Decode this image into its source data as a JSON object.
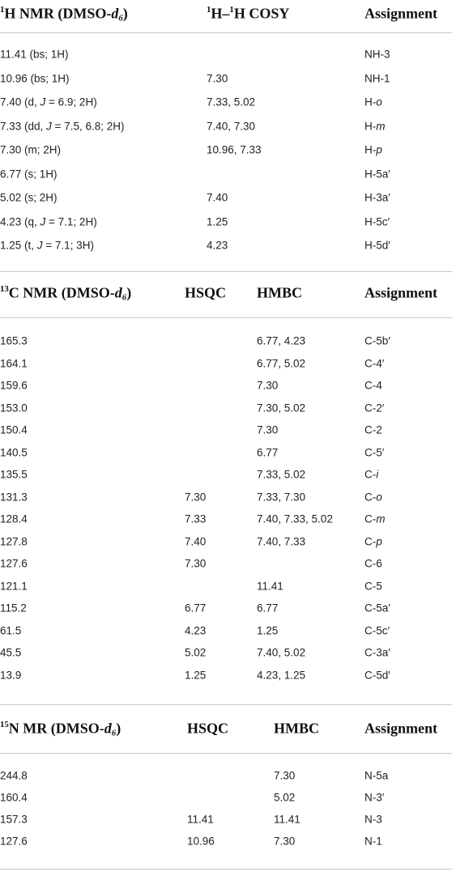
{
  "sections": [
    {
      "columns": [
        [
          {
            "sup": "1"
          },
          "H NMR (DMSO-",
          {
            "italic": "d"
          },
          {
            "sub": "6"
          },
          ")"
        ],
        [
          {
            "sup": "1"
          },
          "H–",
          {
            "sup": "1"
          },
          "H COSY"
        ],
        "Assignment"
      ],
      "rows": [
        [
          "11.41 (bs; 1H)",
          null,
          "NH-3"
        ],
        [
          "10.96 (bs; 1H)",
          "7.30",
          "NH-1"
        ],
        [
          [
            "7.40 (d, ",
            {
              "italic": "J"
            },
            " = 6.9; 2H)"
          ],
          "7.33, 5.02",
          [
            "H-",
            {
              "italic": "o"
            }
          ]
        ],
        [
          [
            "7.33 (dd, ",
            {
              "italic": "J"
            },
            " = 7.5, 6.8; 2H)"
          ],
          "7.40, 7.30",
          [
            "H-",
            {
              "italic": "m"
            }
          ]
        ],
        [
          "7.30 (m; 2H)",
          "10.96, 7.33",
          [
            "H-",
            {
              "italic": "p"
            }
          ]
        ],
        [
          "6.77 (s; 1H)",
          null,
          "H-5a′"
        ],
        [
          "5.02 (s; 2H)",
          "7.40",
          "H-3a′"
        ],
        [
          [
            "4.23 (q, ",
            {
              "italic": "J"
            },
            " = 7.1; 2H)"
          ],
          "1.25",
          "H-5c′"
        ],
        [
          [
            "1.25 (t, ",
            {
              "italic": "J"
            },
            " = 7.1; 3H)"
          ],
          "4.23",
          "H-5d′"
        ]
      ]
    },
    {
      "columns": [
        [
          {
            "sup": "13"
          },
          "C NMR (DMSO-",
          {
            "italic": "d"
          },
          {
            "sub": "6"
          },
          ")"
        ],
        "HSQC",
        "HMBC",
        "Assignment"
      ],
      "rows": [
        [
          "165.3",
          null,
          "6.77, 4.23",
          "C-5b′"
        ],
        [
          "164.1",
          null,
          "6.77, 5.02",
          "C-4′"
        ],
        [
          "159.6",
          null,
          "7.30",
          "C-4"
        ],
        [
          "153.0",
          null,
          "7.30, 5.02",
          "C-2′"
        ],
        [
          "150.4",
          null,
          "7.30",
          "C-2"
        ],
        [
          "140.5",
          null,
          "6.77",
          "C-5′"
        ],
        [
          "135.5",
          null,
          "7.33, 5.02",
          [
            "C-",
            {
              "italic": "i"
            }
          ]
        ],
        [
          "131.3",
          "7.30",
          "7.33, 7.30",
          [
            "C-",
            {
              "italic": "o"
            }
          ]
        ],
        [
          "128.4",
          "7.33",
          "7.40, 7.33, 5.02",
          [
            "C-",
            {
              "italic": "m"
            }
          ]
        ],
        [
          "127.8",
          "7.40",
          "7.40, 7.33",
          [
            "C-",
            {
              "italic": "p"
            }
          ]
        ],
        [
          "127.6",
          "7.30",
          null,
          "C-6"
        ],
        [
          "121.1",
          null,
          "11.41",
          "C-5"
        ],
        [
          "115.2",
          "6.77",
          "6.77",
          "C-5a′"
        ],
        [
          "61.5",
          "4.23",
          "1.25",
          "C-5c′"
        ],
        [
          "45.5",
          "5.02",
          "7.40, 5.02",
          "C-3a′"
        ],
        [
          "13.9",
          "1.25",
          "4.23, 1.25",
          "C-5d′"
        ]
      ]
    },
    {
      "columns": [
        [
          {
            "sup": "15"
          },
          "N MR (DMSO-",
          {
            "italic": "d"
          },
          {
            "sub": "6"
          },
          ")"
        ],
        "HSQC",
        "HMBC",
        "Assignment"
      ],
      "rows": [
        [
          "244.8",
          null,
          "7.30",
          "N-5a"
        ],
        [
          "160.4",
          null,
          "5.02",
          "N-3′"
        ],
        [
          "157.3",
          "11.41",
          "11.41",
          "N-3"
        ],
        [
          "127.6",
          "10.96",
          "7.30",
          "N-1"
        ]
      ]
    }
  ]
}
